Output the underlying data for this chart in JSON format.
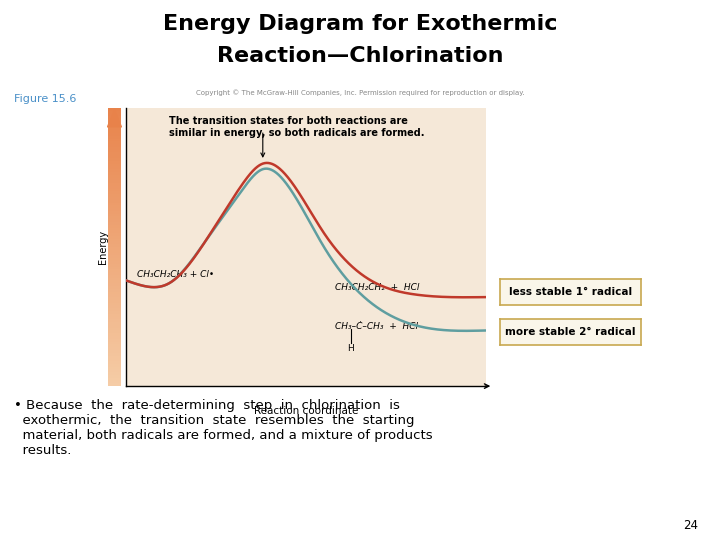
{
  "title_line1": "Energy Diagram for Exothermic",
  "title_line2": "Reaction—Chlorination",
  "figure_label": "Figure 15.6",
  "copyright_text": "Copyright © The McGraw-Hill Companies, Inc. Permission required for reproduction or display.",
  "reaction_coord_label": "Reaction coordinate",
  "energy_label": "Energy",
  "annotation_text": "The transition states for both reactions are\nsimilar in energy, so both radicals are formed.",
  "reactant_label": "CH₃CH₂CH₃ + Cl•",
  "product1_label": "CH₃CH₂ĊH₂  +  HCl",
  "product2_label": "CH₃–Ċ–CH₃  +  HCl",
  "product2_h": "H",
  "box1_text": "less stable 1° radical",
  "box2_text": "more stable 2° radical",
  "page_number": "24",
  "background_color": "#ffffff",
  "plot_bg_color": "#f5e8d8",
  "arrow_color_top": "#e8824a",
  "arrow_color_bot": "#f5c89a",
  "curve1_color": "#c0392b",
  "curve2_color": "#5f9ea0",
  "title_color": "#000000",
  "figure_label_color": "#4a90c8",
  "box_border_color": "#c8a850",
  "box_fill_color": "#faf6ea"
}
